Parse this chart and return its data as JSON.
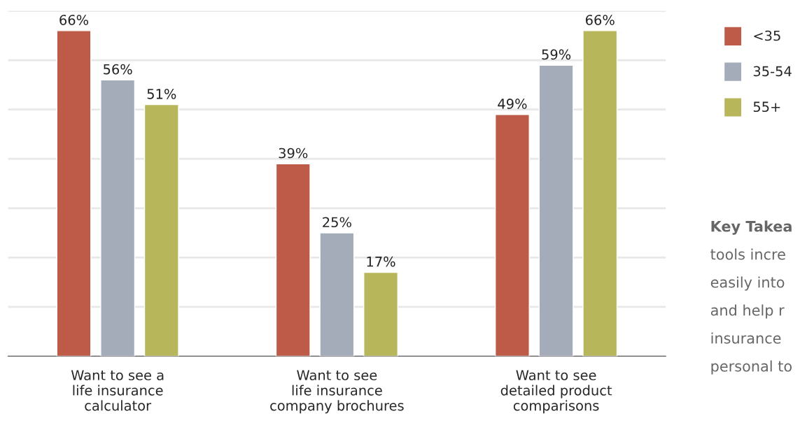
{
  "chart_data": {
    "type": "bar",
    "categories": [
      "Want to see a\nlife insurance\ncalculator",
      "Want to see\nlife insurance\ncompany brochures",
      "Want to see\ndetailed product\ncomparisons"
    ],
    "series": [
      {
        "name": "<35",
        "color": "#bd5b48",
        "values": [
          66,
          39,
          49
        ],
        "value_labels": [
          "66%",
          "39%",
          "49%"
        ]
      },
      {
        "name": "35-54",
        "color": "#a5acb9",
        "values": [
          56,
          25,
          59
        ],
        "value_labels": [
          "56%",
          "25%",
          "59%"
        ]
      },
      {
        "name": "55+",
        "color": "#b8b65a",
        "values": [
          51,
          17,
          66
        ],
        "value_labels": [
          "51%",
          "17%",
          "66%"
        ]
      }
    ],
    "ylim": [
      0,
      70
    ],
    "yticks": [
      {
        "value": 10,
        "label": null
      },
      {
        "value": 20,
        "label": null
      },
      {
        "value": 30,
        "label": null
      },
      {
        "value": 40,
        "label": null
      },
      {
        "value": 50,
        "label": null
      },
      {
        "value": 60,
        "label": null
      },
      {
        "value": 70,
        "label": null
      }
    ],
    "tick_labels": "x",
    "grid": "y",
    "legend": "top right",
    "annotations": [
      "Key Takea",
      "tools incre",
      "easily into",
      "and help r",
      "insurance",
      "personal to"
    ]
  }
}
